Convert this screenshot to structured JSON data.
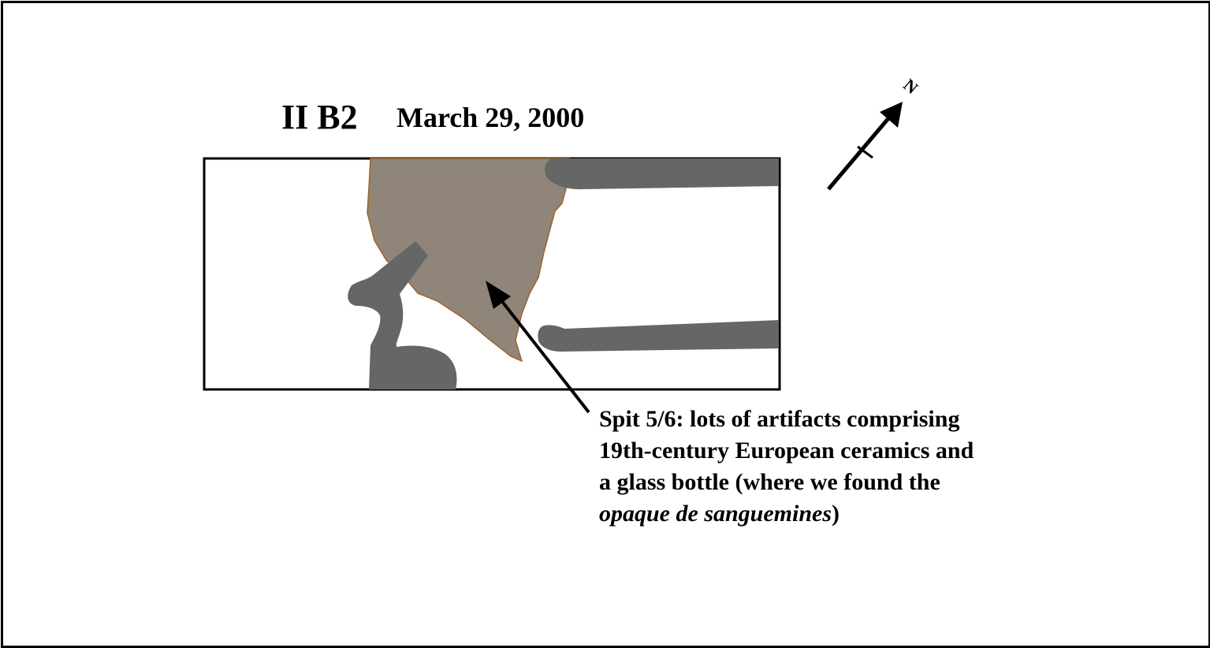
{
  "title": {
    "unit": "II B2",
    "date": "March 29, 2000"
  },
  "north_arrow": {
    "label": "N",
    "icon": "north-arrow-icon"
  },
  "annotation": {
    "line1": "Spit 5/6: lots of artifacts comprising",
    "line2": "19th-century European ceramics and",
    "line3": "a glass bottle (where we found the",
    "line4_italic": "opaque de sanguemines",
    "line4_tail": ")"
  },
  "colors": {
    "feature_fill": "#8f8578",
    "feature_outline": "#a0642a",
    "root_fill": "#666666",
    "ink": "#000000",
    "background": "#ffffff"
  }
}
